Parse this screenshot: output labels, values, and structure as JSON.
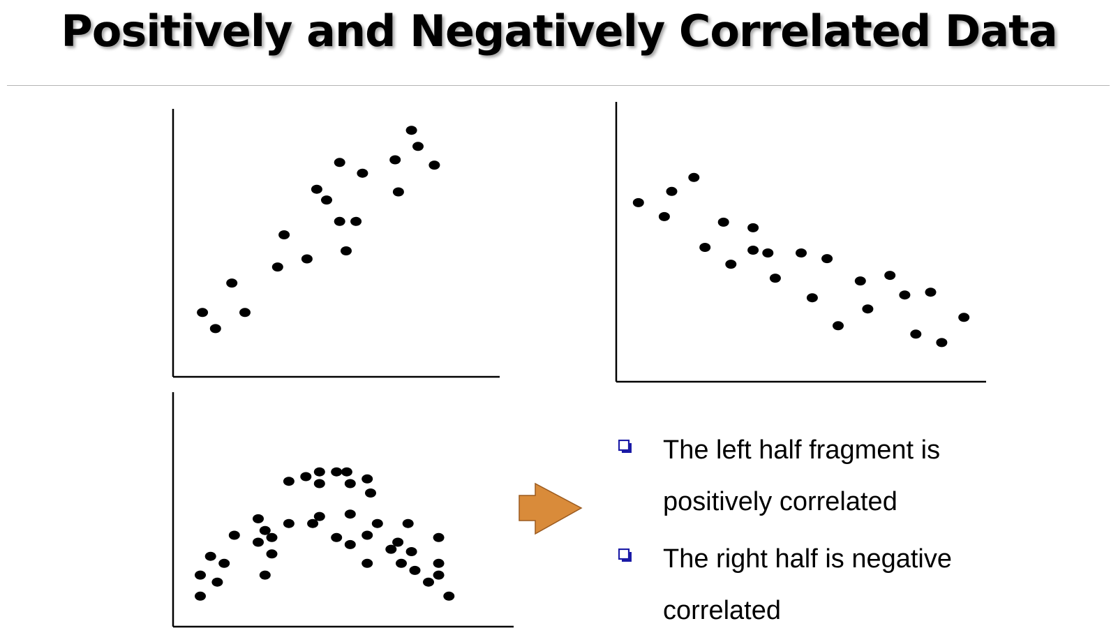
{
  "title": "Positively and Negatively Correlated Data",
  "colors": {
    "dot": "#000000",
    "axis": "#000000",
    "arrow_fill": "#d98b3a",
    "arrow_stroke": "#9a5a1f",
    "bullet": "#1a1aa6"
  },
  "bullets": [
    {
      "icon": "square-bullet-icon",
      "text_line1": "The left half fragment is",
      "text_line2": "positively correlated"
    },
    {
      "icon": "square-bullet-icon",
      "text_line1": "The right half is negative",
      "text_line2": "correlated"
    }
  ],
  "arrow_icon": "right-arrow-icon",
  "chart_data": [
    {
      "type": "scatter",
      "title": "",
      "xlabel": "",
      "ylabel": "",
      "xlim": [
        0,
        100
      ],
      "ylim": [
        0,
        100
      ],
      "points": [
        [
          9,
          24
        ],
        [
          13,
          18
        ],
        [
          18,
          35
        ],
        [
          22,
          24
        ],
        [
          32,
          41
        ],
        [
          34,
          53
        ],
        [
          41,
          44
        ],
        [
          44,
          70
        ],
        [
          47,
          66
        ],
        [
          51,
          58
        ],
        [
          51,
          80
        ],
        [
          53,
          47
        ],
        [
          56,
          58
        ],
        [
          58,
          76
        ],
        [
          68,
          81
        ],
        [
          69,
          69
        ],
        [
          73,
          92
        ],
        [
          75,
          86
        ],
        [
          80,
          79
        ]
      ]
    },
    {
      "type": "scatter",
      "title": "",
      "xlabel": "",
      "ylabel": "",
      "xlim": [
        0,
        100
      ],
      "ylim": [
        0,
        100
      ],
      "points": [
        [
          6,
          64
        ],
        [
          13,
          59
        ],
        [
          15,
          68
        ],
        [
          21,
          73
        ],
        [
          24,
          48
        ],
        [
          29,
          57
        ],
        [
          31,
          42
        ],
        [
          37,
          55
        ],
        [
          37,
          47
        ],
        [
          41,
          46
        ],
        [
          43,
          37
        ],
        [
          50,
          46
        ],
        [
          53,
          30
        ],
        [
          57,
          44
        ],
        [
          60,
          20
        ],
        [
          66,
          36
        ],
        [
          68,
          26
        ],
        [
          74,
          38
        ],
        [
          78,
          31
        ],
        [
          81,
          17
        ],
        [
          85,
          32
        ],
        [
          88,
          14
        ],
        [
          94,
          23
        ]
      ]
    },
    {
      "type": "scatter",
      "title": "",
      "xlabel": "",
      "ylabel": "",
      "xlim": [
        0,
        100
      ],
      "ylim": [
        0,
        100
      ],
      "points": [
        [
          8,
          13
        ],
        [
          8,
          22
        ],
        [
          11,
          30
        ],
        [
          13,
          19
        ],
        [
          15,
          27
        ],
        [
          18,
          39
        ],
        [
          25,
          36
        ],
        [
          25,
          46
        ],
        [
          27,
          22
        ],
        [
          27,
          41
        ],
        [
          29,
          31
        ],
        [
          29,
          38
        ],
        [
          34,
          62
        ],
        [
          34,
          44
        ],
        [
          39,
          64
        ],
        [
          41,
          44
        ],
        [
          43,
          66
        ],
        [
          43,
          61
        ],
        [
          43,
          47
        ],
        [
          48,
          66
        ],
        [
          48,
          38
        ],
        [
          51,
          66
        ],
        [
          52,
          61
        ],
        [
          52,
          48
        ],
        [
          52,
          35
        ],
        [
          57,
          39
        ],
        [
          57,
          27
        ],
        [
          57,
          63
        ],
        [
          58,
          57
        ],
        [
          60,
          44
        ],
        [
          64,
          33
        ],
        [
          66,
          36
        ],
        [
          67,
          27
        ],
        [
          69,
          44
        ],
        [
          70,
          32
        ],
        [
          71,
          24
        ],
        [
          75,
          19
        ],
        [
          78,
          38
        ],
        [
          78,
          27
        ],
        [
          78,
          22
        ],
        [
          81,
          13
        ]
      ]
    }
  ]
}
